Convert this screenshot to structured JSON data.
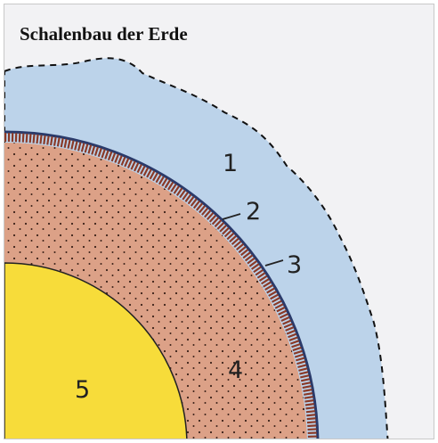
{
  "title": "Schalenbau der Erde",
  "layers": [
    {
      "label": "1"
    },
    {
      "label": "2"
    },
    {
      "label": "3"
    },
    {
      "label": "4"
    },
    {
      "label": "5"
    }
  ]
}
